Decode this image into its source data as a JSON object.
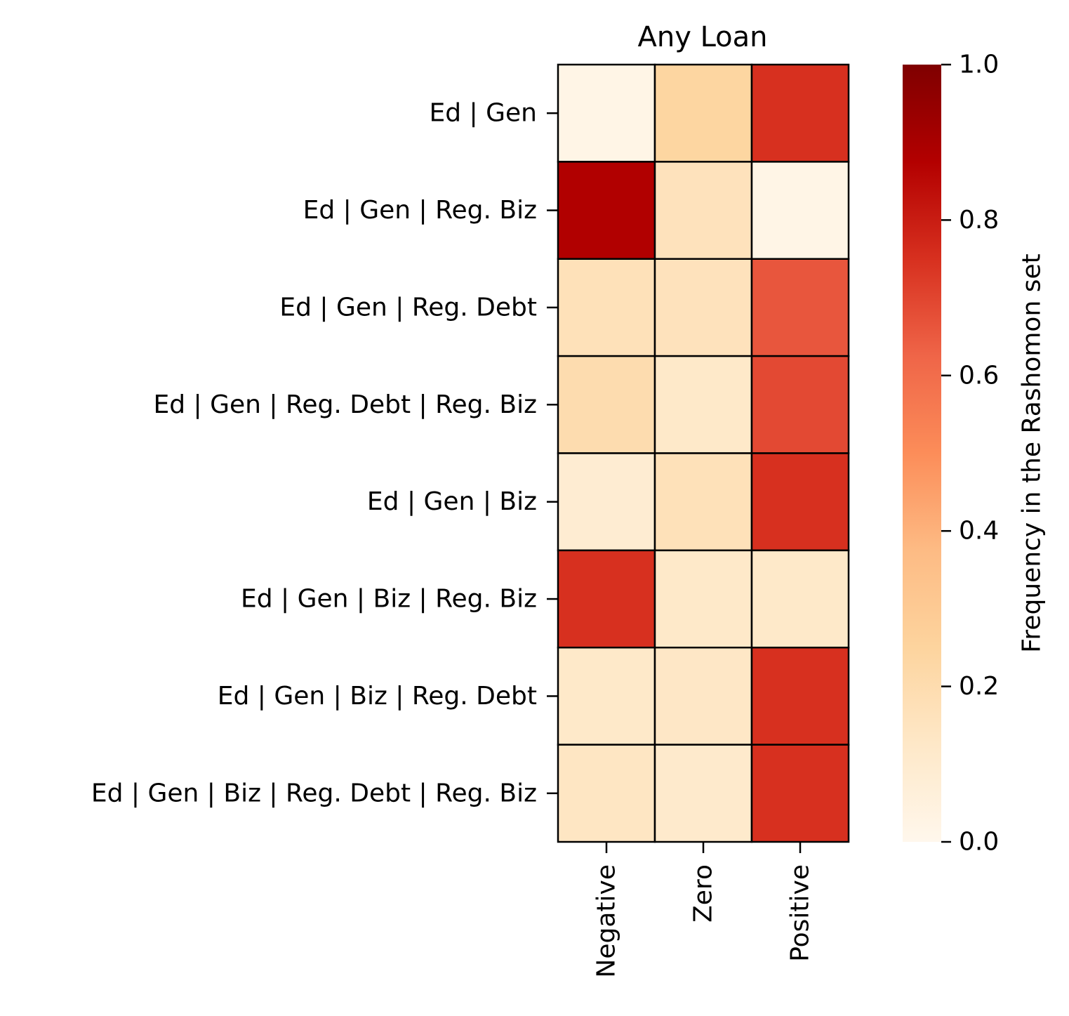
{
  "chart_data": {
    "type": "heatmap",
    "title": "Any Loan",
    "columns": [
      "Negative",
      "Zero",
      "Positive"
    ],
    "rows": [
      "Ed | Gen",
      "Ed | Gen | Reg. Biz",
      "Ed | Gen | Reg. Debt",
      "Ed | Gen | Reg. Debt | Reg. Biz",
      "Ed | Gen | Biz",
      "Ed | Gen | Biz | Reg. Biz",
      "Ed | Gen | Biz | Reg. Debt",
      "Ed | Gen | Biz | Reg. Debt | Reg. Biz"
    ],
    "values": [
      [
        0.02,
        0.24,
        0.75
      ],
      [
        0.88,
        0.16,
        0.02
      ],
      [
        0.17,
        0.16,
        0.66
      ],
      [
        0.2,
        0.12,
        0.69
      ],
      [
        0.09,
        0.17,
        0.75
      ],
      [
        0.75,
        0.12,
        0.12
      ],
      [
        0.12,
        0.13,
        0.75
      ],
      [
        0.14,
        0.11,
        0.75
      ]
    ],
    "colorbar": {
      "label": "Frequency in the Rashomon set",
      "range": [
        0,
        1
      ],
      "ticks": [
        0.0,
        0.2,
        0.4,
        0.6,
        0.8,
        1.0
      ],
      "tick_labels": [
        "0.0",
        "0.2",
        "0.4",
        "0.6",
        "0.8",
        "1.0"
      ],
      "colormap": "OrRd",
      "colors": [
        "#fff7ec",
        "#fee8c8",
        "#fdd49e",
        "#fdbb84",
        "#fc8d59",
        "#ef6548",
        "#d7301f",
        "#b30000",
        "#7f0000"
      ]
    },
    "grid": true,
    "legend_placement": "right"
  }
}
